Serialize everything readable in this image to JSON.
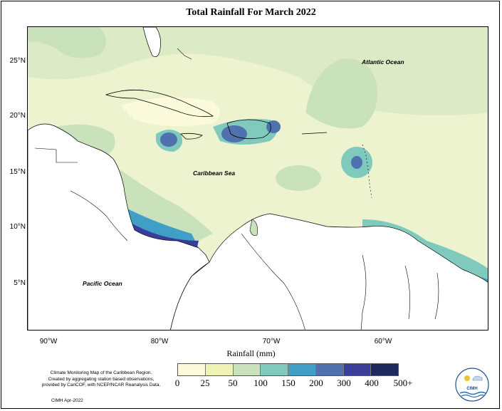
{
  "title": "Total Rainfall For March 2022",
  "map": {
    "labels": {
      "atlantic": "Atlantic Ocean",
      "caribbean": "Caribbean Sea",
      "pacific": "Pacific Ocean"
    },
    "lat_ticks": [
      "25°N",
      "20°N",
      "15°N",
      "10°N",
      "5°N"
    ],
    "lon_ticks": [
      "90°W",
      "80°W",
      "70°W",
      "60°W"
    ]
  },
  "legend": {
    "title": "Rainfall (mm)",
    "ticks": [
      "0",
      "25",
      "50",
      "100",
      "150",
      "200",
      "300",
      "400",
      "500+"
    ],
    "colors": [
      "#fbfbdc",
      "#eef3b4",
      "#c9e2bc",
      "#7fc9bd",
      "#3f9fc6",
      "#4f71ad",
      "#3a3e9a",
      "#1d2a5e"
    ]
  },
  "footer": {
    "note_line1": "Climate Monitoring Map of the Caribbean Region.",
    "note_line2": "Created by aggregating station based observations,",
    "note_line3": "provided by CariCOF, with NCEP/NCAR Reanalysis Data.",
    "credit": "CIMH Apr-2022",
    "logo_text": "CIMH"
  }
}
